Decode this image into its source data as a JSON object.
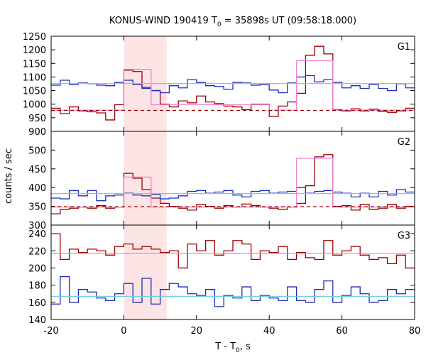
{
  "chart_data": {
    "type": "line",
    "title": "KONUS-WIND 190419 T0 = 35898s UT (09:58:18.000)",
    "title_parts": {
      "pre": "KONUS-WIND 190419 T",
      "sub": "0",
      "post": " = 35898s UT (09:58:18.000)"
    },
    "xlabel_parts": {
      "pre": "T - T",
      "sub": "0",
      "post": ", s"
    },
    "ylabel": "counts / sec",
    "xlim": [
      -20,
      80
    ],
    "xticks": [
      -20,
      0,
      20,
      40,
      60,
      80
    ],
    "grid": false,
    "highlight_interval": [
      0,
      11.776
    ],
    "colors": {
      "red": "#990000",
      "blue": "#1f2bbf",
      "cyan": "#6fd0e0",
      "pink": "#ee82d8",
      "highlight": "#fde4e4"
    },
    "bin_edges": [
      -20,
      -17.5,
      -15,
      -12.5,
      -10,
      -7.5,
      -5,
      -2.5,
      0,
      2.5,
      5,
      7.5,
      10,
      12.5,
      15,
      17.5,
      20,
      22.5,
      25,
      27.5,
      30,
      32.5,
      35,
      37.5,
      40,
      42.5,
      45,
      47.5,
      50,
      52.5,
      55,
      57.5,
      60,
      62.5,
      65,
      67.5,
      70,
      72.5,
      75,
      77.5,
      80
    ],
    "panels": [
      {
        "label": "G1",
        "ylim": [
          900,
          1250
        ],
        "yticks": [
          900,
          950,
          1000,
          1050,
          1100,
          1150,
          1200,
          1250
        ],
        "series": [
          {
            "color": "red",
            "values": [
              985,
              965,
              990,
              975,
              972,
              968,
              942,
              998,
              1125,
              1120,
              1062,
              1050,
              1000,
              990,
              1012,
              1005,
              1030,
              1008,
              1002,
              993,
              990,
              980,
              1000,
              1000,
              955,
              993,
              1008,
              1040,
              1180,
              1213,
              1185,
              980,
              975,
              983,
              975,
              982,
              974,
              970,
              975,
              985
            ]
          },
          {
            "color": "blue",
            "values": [
              1070,
              1088,
              1072,
              1078,
              1075,
              1070,
              1068,
              1080,
              1088,
              1072,
              1058,
              1050,
              1042,
              1068,
              1060,
              1090,
              1080,
              1068,
              1065,
              1055,
              1080,
              1078,
              1070,
              1072,
              1052,
              1042,
              1078,
              1100,
              1105,
              1082,
              1090,
              1080,
              1060,
              1068,
              1058,
              1072,
              1058,
              1050,
              1075,
              1060
            ]
          },
          {
            "color": "pink",
            "type": "step",
            "values": [
              978,
              978,
              978,
              978,
              978,
              978,
              978,
              978,
              1128,
              1128,
              1128,
              998,
              998,
              998,
              998,
              998,
              998,
              998,
              998,
              998,
              998,
              998,
              998,
              998,
              978,
              978,
              978,
              1160,
              1160,
              1160,
              1160,
              978,
              978,
              978,
              978,
              978,
              978,
              978,
              978,
              978
            ]
          },
          {
            "color": "red",
            "type": "hline",
            "dashed": true,
            "value": 977
          },
          {
            "color": "cyan",
            "type": "hline",
            "dashed": false,
            "value": 1076
          }
        ]
      },
      {
        "label": "G2",
        "ylim": [
          300,
          550
        ],
        "yticks": [
          300,
          350,
          400,
          450,
          500
        ],
        "series": [
          {
            "color": "red",
            "values": [
              330,
              342,
              345,
              348,
              345,
              352,
              345,
              348,
              438,
              425,
              395,
              372,
              358,
              350,
              345,
              340,
              355,
              350,
              345,
              352,
              348,
              356,
              352,
              348,
              345,
              342,
              348,
              358,
              405,
              482,
              488,
              350,
              352,
              340,
              355,
              342,
              345,
              355,
              345,
              350
            ]
          },
          {
            "color": "blue",
            "values": [
              372,
              370,
              392,
              378,
              392,
              365,
              378,
              380,
              385,
              380,
              378,
              382,
              370,
              372,
              378,
              390,
              392,
              385,
              388,
              392,
              380,
              375,
              390,
              392,
              385,
              388,
              390,
              400,
              385,
              390,
              392,
              388,
              385,
              375,
              385,
              375,
              390,
              380,
              395,
              388
            ]
          },
          {
            "color": "pink",
            "type": "step",
            "values": [
              348,
              348,
              348,
              348,
              348,
              348,
              348,
              348,
              428,
              428,
              428,
              348,
              348,
              348,
              348,
              348,
              348,
              348,
              348,
              348,
              348,
              348,
              348,
              348,
              348,
              348,
              348,
              478,
              478,
              478,
              478,
              348,
              348,
              348,
              348,
              348,
              348,
              348,
              348,
              348
            ]
          },
          {
            "color": "red",
            "type": "hline",
            "dashed": true,
            "value": 349
          },
          {
            "color": "cyan",
            "type": "hline",
            "dashed": false,
            "value": 384
          }
        ]
      },
      {
        "label": "G3",
        "ylim": [
          140,
          250
        ],
        "yticks": [
          140,
          160,
          180,
          200,
          220,
          240
        ],
        "series": [
          {
            "color": "red",
            "values": [
              240,
              210,
              222,
              218,
              222,
              220,
              215,
              225,
              228,
              222,
              225,
              222,
              218,
              220,
              200,
              228,
              220,
              232,
              215,
              220,
              232,
              228,
              210,
              220,
              218,
              225,
              210,
              218,
              212,
              210,
              232,
              215,
              220,
              225,
              215,
              210,
              212,
              205,
              215,
              200
            ]
          },
          {
            "color": "blue",
            "values": [
              158,
              190,
              160,
              175,
              172,
              165,
              162,
              170,
              182,
              160,
              188,
              158,
              175,
              182,
              178,
              170,
              168,
              175,
              155,
              168,
              165,
              178,
              162,
              168,
              165,
              162,
              178,
              162,
              160,
              175,
              185,
              160,
              168,
              178,
              170,
              160,
              162,
              175,
              170,
              175
            ]
          },
          {
            "color": "pink",
            "type": "hline",
            "dashed": false,
            "value": 217
          },
          {
            "color": "cyan",
            "type": "hline",
            "dashed": false,
            "value": 167
          }
        ]
      }
    ]
  }
}
